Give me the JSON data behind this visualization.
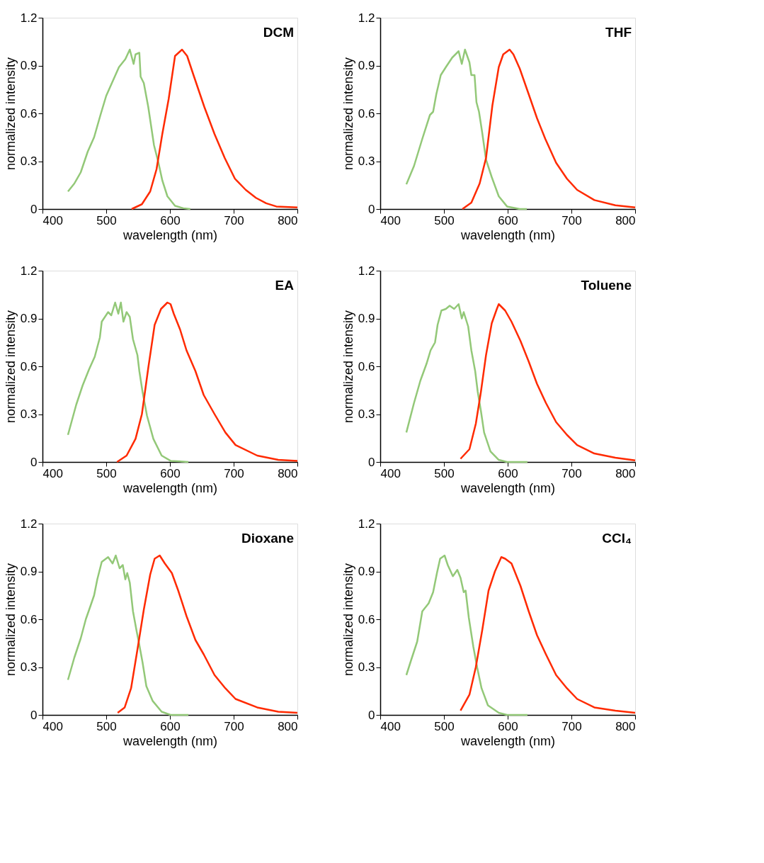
{
  "chart_data": [
    {
      "type": "line",
      "xlabel": "wavelength (nm)",
      "ylabel": "normalized intensity",
      "annotations": [
        "DCM"
      ],
      "xlim": [
        400,
        800
      ],
      "xticks": [
        400,
        500,
        600,
        700,
        800
      ],
      "ylim": [
        0,
        1.2
      ],
      "yticks": [
        0,
        0.3,
        0.6,
        0.9,
        1.2
      ],
      "grid": false,
      "marker": "none",
      "line_style": "solid",
      "series": [
        {
          "color": "#93c878",
          "x": [
            440,
            450,
            460,
            471,
            481,
            491,
            500,
            510,
            520,
            530,
            537,
            543,
            546,
            552,
            554,
            559,
            566,
            575,
            582,
            588,
            596,
            608,
            621,
            632
          ],
          "values": [
            0.11,
            0.16,
            0.23,
            0.36,
            0.45,
            0.59,
            0.71,
            0.8,
            0.89,
            0.94,
            1.0,
            0.91,
            0.97,
            0.98,
            0.83,
            0.79,
            0.64,
            0.4,
            0.29,
            0.18,
            0.08,
            0.02,
            0.005,
            0
          ]
        },
        {
          "color": "#ff2a00",
          "x": [
            540,
            556,
            569,
            579,
            588,
            598,
            608,
            619,
            627,
            637,
            654,
            670,
            686,
            702,
            719,
            735,
            751,
            767,
            800
          ],
          "values": [
            0,
            0.03,
            0.11,
            0.25,
            0.47,
            0.69,
            0.96,
            1.0,
            0.96,
            0.84,
            0.64,
            0.47,
            0.32,
            0.19,
            0.12,
            0.07,
            0.036,
            0.016,
            0.01
          ]
        }
      ]
    },
    {
      "type": "line",
      "xlabel": "wavelength (nm)",
      "ylabel": "normalized intensity",
      "annotations": [
        "THF"
      ],
      "xlim": [
        400,
        800
      ],
      "xticks": [
        400,
        500,
        600,
        700,
        800
      ],
      "ylim": [
        0,
        1.2
      ],
      "yticks": [
        0,
        0.3,
        0.6,
        0.9,
        1.2
      ],
      "grid": false,
      "marker": "none",
      "line_style": "solid",
      "series": [
        {
          "color": "#93c878",
          "x": [
            441,
            453,
            466,
            478,
            483,
            488,
            495,
            503,
            513,
            523,
            528,
            533,
            540,
            543,
            548,
            551,
            555,
            560,
            566,
            575,
            586,
            599,
            619,
            630
          ],
          "values": [
            0.155,
            0.27,
            0.44,
            0.59,
            0.61,
            0.72,
            0.84,
            0.89,
            0.95,
            0.99,
            0.91,
            1.0,
            0.92,
            0.84,
            0.84,
            0.67,
            0.61,
            0.48,
            0.31,
            0.2,
            0.08,
            0.016,
            0,
            0
          ]
        },
        {
          "color": "#ff2a00",
          "x": [
            529,
            543,
            556,
            566,
            576,
            586,
            593,
            603,
            609,
            619,
            633,
            646,
            659,
            676,
            693,
            709,
            736,
            769,
            800
          ],
          "values": [
            0,
            0.04,
            0.16,
            0.32,
            0.65,
            0.89,
            0.97,
            1.0,
            0.97,
            0.88,
            0.72,
            0.57,
            0.44,
            0.29,
            0.19,
            0.12,
            0.056,
            0.023,
            0.01
          ]
        }
      ]
    },
    {
      "type": "line",
      "xlabel": "wavelength (nm)",
      "ylabel": "normalized intensity",
      "annotations": [
        "EA"
      ],
      "xlim": [
        400,
        800
      ],
      "xticks": [
        400,
        500,
        600,
        700,
        800
      ],
      "ylim": [
        0,
        1.2
      ],
      "yticks": [
        0,
        0.3,
        0.6,
        0.9,
        1.2
      ],
      "grid": false,
      "marker": "none",
      "line_style": "solid",
      "series": [
        {
          "color": "#93c878",
          "x": [
            440,
            453,
            463,
            473,
            482,
            490,
            493,
            503,
            508,
            514,
            519,
            523,
            527,
            532,
            537,
            542,
            549,
            552,
            557,
            564,
            574,
            587,
            601,
            629
          ],
          "values": [
            0.17,
            0.36,
            0.48,
            0.58,
            0.66,
            0.78,
            0.88,
            0.94,
            0.92,
            1.0,
            0.93,
            1.0,
            0.88,
            0.94,
            0.91,
            0.77,
            0.67,
            0.57,
            0.44,
            0.29,
            0.145,
            0.04,
            0.007,
            0
          ]
        },
        {
          "color": "#ff2a00",
          "x": [
            517,
            532,
            546,
            556,
            566,
            576,
            586,
            596,
            601,
            606,
            616,
            626,
            640,
            653,
            670,
            687,
            703,
            737,
            770,
            800
          ],
          "values": [
            0,
            0.04,
            0.145,
            0.3,
            0.59,
            0.86,
            0.96,
            1.0,
            0.99,
            0.93,
            0.83,
            0.7,
            0.57,
            0.42,
            0.3,
            0.185,
            0.106,
            0.04,
            0.013,
            0.007
          ]
        }
      ]
    },
    {
      "type": "line",
      "xlabel": "wavelength (nm)",
      "ylabel": "normalized intensity",
      "annotations": [
        "Toluene"
      ],
      "xlim": [
        400,
        800
      ],
      "xticks": [
        400,
        500,
        600,
        700,
        800
      ],
      "ylim": [
        0,
        1.2
      ],
      "yticks": [
        0,
        0.3,
        0.6,
        0.9,
        1.2
      ],
      "grid": false,
      "marker": "none",
      "line_style": "solid",
      "series": [
        {
          "color": "#93c878",
          "x": [
            441,
            453,
            463,
            473,
            479,
            486,
            490,
            496,
            503,
            509,
            516,
            523,
            528,
            531,
            538,
            543,
            549,
            553,
            558,
            563,
            573,
            586,
            599,
            631
          ],
          "values": [
            0.185,
            0.37,
            0.51,
            0.62,
            0.7,
            0.75,
            0.86,
            0.95,
            0.96,
            0.98,
            0.96,
            0.99,
            0.9,
            0.94,
            0.85,
            0.7,
            0.57,
            0.44,
            0.32,
            0.185,
            0.066,
            0.013,
            0,
            0
          ]
        },
        {
          "color": "#ff2a00",
          "x": [
            526,
            540,
            550,
            558,
            566,
            575,
            583,
            586,
            596,
            606,
            620,
            633,
            646,
            660,
            676,
            693,
            709,
            736,
            769,
            800
          ],
          "values": [
            0.02,
            0.08,
            0.24,
            0.44,
            0.67,
            0.87,
            0.96,
            0.99,
            0.95,
            0.88,
            0.76,
            0.63,
            0.49,
            0.37,
            0.25,
            0.17,
            0.106,
            0.053,
            0.027,
            0.01
          ]
        }
      ]
    },
    {
      "type": "line",
      "xlabel": "wavelength (nm)",
      "ylabel": "normalized intensity",
      "annotations": [
        "Dioxane"
      ],
      "xlim": [
        400,
        800
      ],
      "xticks": [
        400,
        500,
        600,
        700,
        800
      ],
      "ylim": [
        0,
        1.2
      ],
      "yticks": [
        0,
        0.3,
        0.6,
        0.9,
        1.2
      ],
      "grid": false,
      "marker": "none",
      "line_style": "solid",
      "series": [
        {
          "color": "#93c878",
          "x": [
            440,
            450,
            460,
            468,
            475,
            481,
            486,
            493,
            503,
            510,
            515,
            521,
            526,
            530,
            533,
            537,
            542,
            548,
            551,
            557,
            563,
            573,
            587,
            601,
            629
          ],
          "values": [
            0.22,
            0.36,
            0.48,
            0.6,
            0.68,
            0.75,
            0.85,
            0.96,
            0.99,
            0.95,
            1.0,
            0.92,
            0.94,
            0.85,
            0.89,
            0.83,
            0.65,
            0.52,
            0.46,
            0.33,
            0.18,
            0.087,
            0.02,
            0,
            0
          ]
        },
        {
          "color": "#ff2a00",
          "x": [
            518,
            529,
            539,
            549,
            559,
            569,
            576,
            584,
            592,
            603,
            613,
            626,
            640,
            653,
            670,
            687,
            703,
            737,
            770,
            800
          ],
          "values": [
            0.013,
            0.047,
            0.167,
            0.41,
            0.66,
            0.88,
            0.98,
            1.0,
            0.95,
            0.89,
            0.78,
            0.62,
            0.47,
            0.38,
            0.25,
            0.167,
            0.1,
            0.047,
            0.02,
            0.013
          ]
        }
      ]
    },
    {
      "type": "line",
      "xlabel": "wavelength (nm)",
      "ylabel": "normalized intensity",
      "annotations": [
        "CCl₄"
      ],
      "xlim": [
        400,
        800
      ],
      "xticks": [
        400,
        500,
        600,
        700,
        800
      ],
      "ylim": [
        0,
        1.2
      ],
      "yticks": [
        0,
        0.3,
        0.6,
        0.9,
        1.2
      ],
      "grid": false,
      "marker": "none",
      "line_style": "solid",
      "series": [
        {
          "color": "#93c878",
          "x": [
            441,
            449,
            458,
            466,
            476,
            483,
            489,
            494,
            501,
            506,
            514,
            521,
            526,
            531,
            534,
            539,
            546,
            552,
            559,
            569,
            586,
            599,
            631
          ],
          "values": [
            0.25,
            0.35,
            0.46,
            0.65,
            0.7,
            0.77,
            0.89,
            0.98,
            1.0,
            0.94,
            0.87,
            0.91,
            0.86,
            0.77,
            0.78,
            0.61,
            0.43,
            0.3,
            0.167,
            0.06,
            0.013,
            0,
            0
          ]
        },
        {
          "color": "#ff2a00",
          "x": [
            526,
            540,
            550,
            560,
            570,
            580,
            590,
            596,
            606,
            620,
            633,
            646,
            660,
            676,
            693,
            709,
            736,
            769,
            800
          ],
          "values": [
            0.027,
            0.127,
            0.3,
            0.53,
            0.78,
            0.9,
            0.99,
            0.98,
            0.95,
            0.81,
            0.65,
            0.5,
            0.38,
            0.25,
            0.167,
            0.1,
            0.047,
            0.027,
            0.013
          ]
        }
      ]
    }
  ]
}
